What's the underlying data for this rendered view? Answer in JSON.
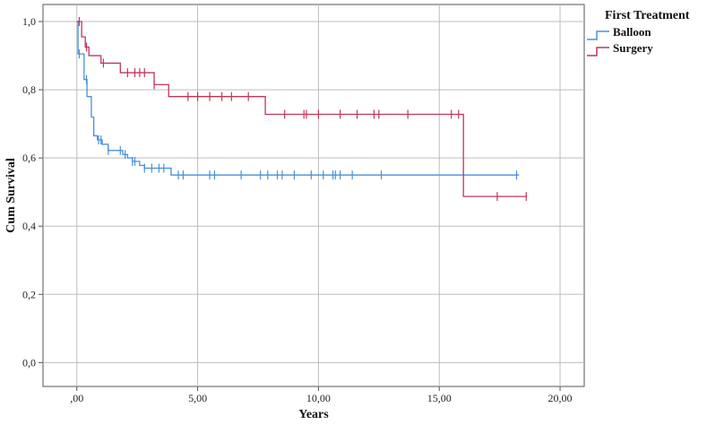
{
  "chart_data": {
    "type": "line",
    "subtype": "kaplan-meier step",
    "xlabel": "Years",
    "ylabel": "Cum Survival",
    "xlim": [
      -1.4,
      21.0
    ],
    "ylim": [
      -0.07,
      1.05
    ],
    "x_ticks": [
      0,
      5,
      10,
      15,
      20
    ],
    "x_tick_labels": [
      ",00",
      "5,00",
      "10,00",
      "15,00",
      "20,00"
    ],
    "y_ticks": [
      0,
      0.2,
      0.4,
      0.6,
      0.8,
      1.0
    ],
    "y_tick_labels": [
      "0,0",
      "0,2",
      "0,4",
      "0,6",
      "0,8",
      "1,0"
    ],
    "grid": true,
    "legend": {
      "title": "First Treatment",
      "position": "top-right-outside"
    },
    "series": [
      {
        "name": "Balloon",
        "color": "#4a90d9",
        "steps": [
          [
            0.0,
            1.0
          ],
          [
            0.05,
            0.905
          ],
          [
            0.3,
            0.83
          ],
          [
            0.42,
            0.78
          ],
          [
            0.6,
            0.72
          ],
          [
            0.7,
            0.665
          ],
          [
            0.85,
            0.653
          ],
          [
            1.05,
            0.64
          ],
          [
            1.3,
            0.622
          ],
          [
            1.9,
            0.61
          ],
          [
            2.1,
            0.6
          ],
          [
            2.3,
            0.59
          ],
          [
            2.6,
            0.578
          ],
          [
            2.8,
            0.57
          ],
          [
            3.9,
            0.55
          ],
          [
            18.3,
            0.55
          ]
        ],
        "censored_x": [
          0.1,
          0.4,
          0.9,
          1.0,
          1.3,
          1.8,
          2.0,
          2.3,
          2.4,
          2.8,
          3.1,
          3.4,
          3.6,
          4.2,
          4.4,
          5.5,
          5.7,
          6.8,
          7.6,
          7.9,
          8.3,
          8.5,
          9.0,
          9.7,
          10.2,
          10.6,
          10.7,
          10.9,
          11.4,
          12.6,
          18.2
        ]
      },
      {
        "name": "Surgery",
        "color": "#c0365a",
        "steps": [
          [
            0.0,
            1.0
          ],
          [
            0.2,
            0.955
          ],
          [
            0.35,
            0.925
          ],
          [
            0.5,
            0.9
          ],
          [
            1.0,
            0.878
          ],
          [
            1.8,
            0.85
          ],
          [
            3.2,
            0.815
          ],
          [
            3.8,
            0.78
          ],
          [
            7.8,
            0.728
          ],
          [
            16.0,
            0.487
          ],
          [
            18.6,
            0.487
          ]
        ],
        "censored_x": [
          0.1,
          0.4,
          1.1,
          2.1,
          2.4,
          2.6,
          2.8,
          3.2,
          4.6,
          5.0,
          5.5,
          6.0,
          6.4,
          7.1,
          8.6,
          9.4,
          9.5,
          10.0,
          10.9,
          11.6,
          12.3,
          12.5,
          13.7,
          15.5,
          15.8,
          17.4,
          18.6
        ]
      }
    ]
  }
}
